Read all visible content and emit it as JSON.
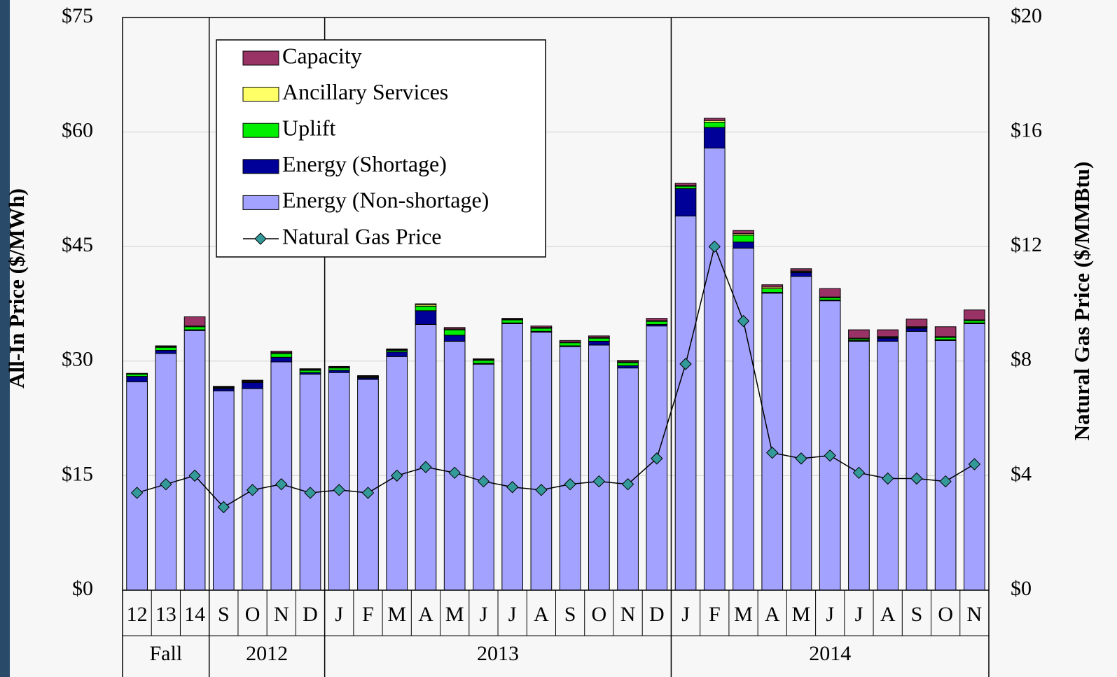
{
  "chart_data": {
    "type": "bar",
    "stacked": true,
    "ylabel": "All-In Price ($/MWh)",
    "y2label": "Natural Gas Price ($/MMBtu)",
    "groups": [
      {
        "label": "Fall",
        "categories": [
          "12",
          "13",
          "14"
        ]
      },
      {
        "label": "2012",
        "categories": [
          "S",
          "O",
          "N",
          "D"
        ]
      },
      {
        "label": "2013",
        "categories": [
          "J",
          "F",
          "M",
          "A",
          "M",
          "J",
          "J",
          "A",
          "S",
          "O",
          "N",
          "D"
        ]
      },
      {
        "label": "2014",
        "categories": [
          "J",
          "F",
          "M",
          "A",
          "M",
          "J",
          "J",
          "A",
          "S",
          "O",
          "N"
        ]
      }
    ],
    "series": [
      {
        "name": "Energy (Non-shortage)",
        "type": "bar",
        "color": "#a3a3ff",
        "values": [
          27.3,
          31.0,
          34.0,
          26.1,
          26.4,
          29.9,
          28.3,
          28.5,
          27.6,
          30.6,
          34.8,
          32.6,
          29.6,
          34.9,
          33.8,
          31.9,
          32.1,
          29.1,
          34.6,
          49.0,
          57.9,
          44.8,
          38.9,
          41.1,
          37.9,
          32.6,
          32.6,
          33.9,
          32.7,
          34.9
        ]
      },
      {
        "name": "Energy (Shortage)",
        "type": "bar",
        "color": "#000099",
        "values": [
          0.7,
          0.4,
          0.1,
          0.3,
          0.8,
          0.6,
          0.2,
          0.3,
          0.2,
          0.6,
          1.8,
          0.8,
          0.1,
          0.1,
          0.1,
          0.1,
          0.5,
          0.3,
          0.2,
          3.6,
          2.7,
          0.8,
          0.1,
          0.5,
          0.1,
          0.1,
          0.4,
          0.4,
          0.1,
          0.1
        ]
      },
      {
        "name": "Uplift",
        "type": "bar",
        "color": "#00ee00",
        "values": [
          0.3,
          0.4,
          0.4,
          0.1,
          0.1,
          0.5,
          0.3,
          0.3,
          0.1,
          0.2,
          0.6,
          0.7,
          0.4,
          0.4,
          0.4,
          0.4,
          0.4,
          0.4,
          0.4,
          0.3,
          0.7,
          0.9,
          0.5,
          0.1,
          0.3,
          0.2,
          0.1,
          0.1,
          0.3,
          0.3
        ]
      },
      {
        "name": "Ancillary Services",
        "type": "bar",
        "color": "#ffff66",
        "values": [
          0.1,
          0.1,
          0.1,
          0.1,
          0.1,
          0.1,
          0.1,
          0.1,
          0.1,
          0.1,
          0.2,
          0.1,
          0.1,
          0.1,
          0.1,
          0.1,
          0.1,
          0.1,
          0.1,
          0.1,
          0.2,
          0.2,
          0.2,
          0.1,
          0.1,
          0.1,
          0.1,
          0.1,
          0.1,
          0.1
        ]
      },
      {
        "name": "Capacity",
        "type": "bar",
        "color": "#993366",
        "values": [
          0,
          0.1,
          1.2,
          0.1,
          0.1,
          0.2,
          0.1,
          0.1,
          0.1,
          0.1,
          0.1,
          0.2,
          0.1,
          0.1,
          0.2,
          0.2,
          0.2,
          0.2,
          0.3,
          0.3,
          0.3,
          0.4,
          0.3,
          0.3,
          1.1,
          1.1,
          0.9,
          1.0,
          1.3,
          1.3
        ]
      },
      {
        "name": "Natural Gas Price",
        "type": "line",
        "axis": "y2",
        "color": "#339999",
        "values": [
          3.4,
          3.7,
          4.0,
          2.9,
          3.5,
          3.7,
          3.4,
          3.5,
          3.4,
          4.0,
          4.3,
          4.1,
          3.8,
          3.6,
          3.5,
          3.7,
          3.8,
          3.7,
          4.6,
          7.9,
          12.0,
          9.4,
          4.8,
          4.6,
          4.7,
          4.1,
          3.9,
          3.9,
          3.8,
          4.4
        ]
      }
    ],
    "ylim": [
      0,
      75
    ],
    "yticks": [
      {
        "value": 0,
        "label": "$0"
      },
      {
        "value": 15,
        "label": "$15"
      },
      {
        "value": 30,
        "label": "$30"
      },
      {
        "value": 45,
        "label": "$45"
      },
      {
        "value": 60,
        "label": "$60"
      },
      {
        "value": 75,
        "label": "$75"
      }
    ],
    "y2lim": [
      0,
      20
    ],
    "y2ticks": [
      {
        "value": 0,
        "label": "$0"
      },
      {
        "value": 4,
        "label": "$4"
      },
      {
        "value": 8,
        "label": "$8"
      },
      {
        "value": 12,
        "label": "$12"
      },
      {
        "value": 16,
        "label": "$16"
      },
      {
        "value": 20,
        "label": "$20"
      }
    ],
    "grid": true
  }
}
